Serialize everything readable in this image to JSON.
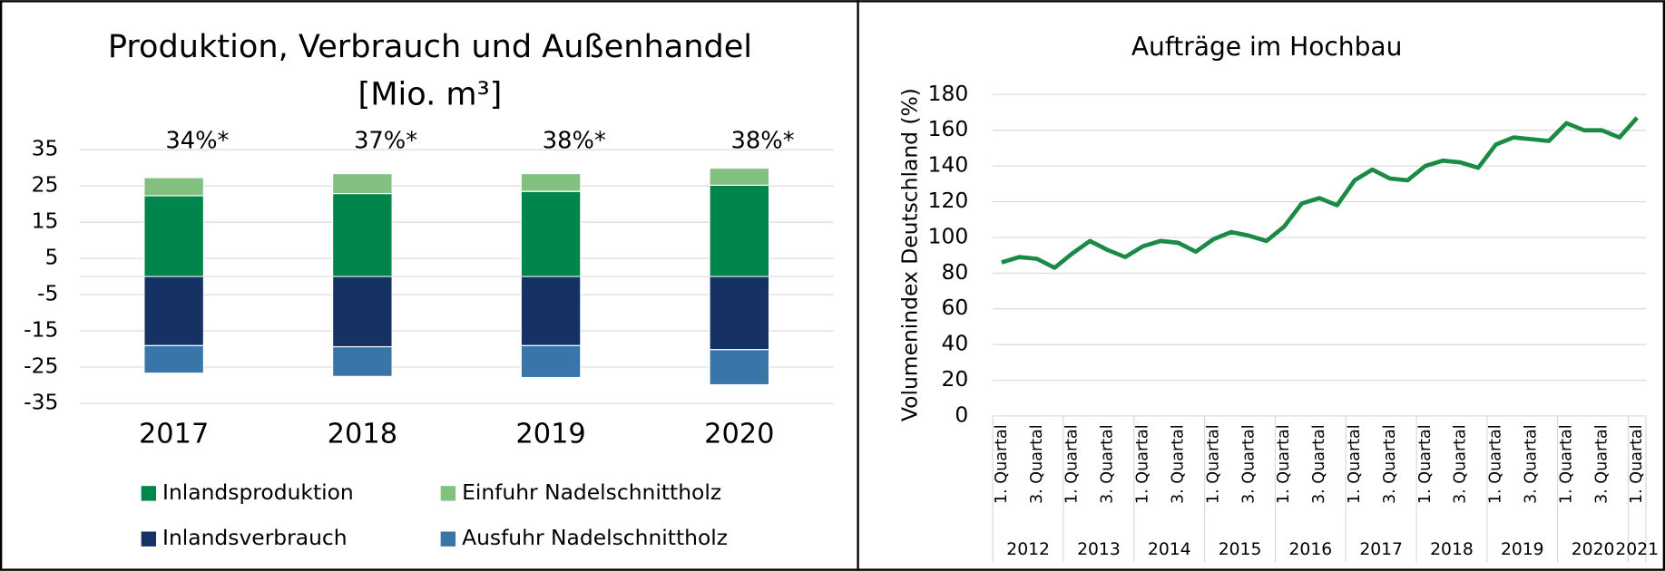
{
  "chart_data": [
    {
      "type": "bar",
      "title": [
        "Produktion, Verbrauch und Außenhandel",
        "[Mio. m³]"
      ],
      "categories": [
        "2017",
        "2018",
        "2019",
        "2020"
      ],
      "annotations": [
        "34%*",
        "37%*",
        "38%*",
        "38%*"
      ],
      "series": [
        {
          "name": "Inlandsproduktion",
          "color": "#00854a",
          "values": [
            22.3,
            22.9,
            23.5,
            25.2
          ]
        },
        {
          "name": "Einfuhr Nadelschnittholz",
          "color": "#82c07f",
          "values": [
            5.0,
            5.5,
            4.9,
            4.7
          ]
        },
        {
          "name": "Inlandsverbrauch",
          "color": "#163264",
          "values": [
            -19.1,
            -19.4,
            -19.1,
            -20.2
          ]
        },
        {
          "name": "Ausfuhr Nadelschnittholz",
          "color": "#3a75aa",
          "values": [
            -7.6,
            -8.2,
            -8.8,
            -9.7
          ]
        }
      ],
      "ylim": [
        -35,
        35
      ],
      "yticks": [
        35,
        25,
        15,
        5,
        -5,
        -15,
        -25,
        -35
      ],
      "grid": true
    },
    {
      "type": "line",
      "title": "Aufträge im Hochbau",
      "ylabel": "Volumenindex Deutschland (%)",
      "categories": [
        "1. Quartal",
        null,
        "3. Quartal",
        null,
        "1. Quartal",
        null,
        "3. Quartal",
        null,
        "1. Quartal",
        null,
        "3. Quartal",
        null,
        "1. Quartal",
        null,
        "3. Quartal",
        null,
        "1. Quartal",
        null,
        "3. Quartal",
        null,
        "1. Quartal",
        null,
        "3. Quartal",
        null,
        "1. Quartal",
        null,
        "3. Quartal",
        null,
        "1. Quartal",
        null,
        "3. Quartal",
        null,
        "1. Quartal",
        null,
        "3. Quartal",
        null,
        "1. Quartal"
      ],
      "groups": [
        {
          "label": "2012",
          "count": 4
        },
        {
          "label": "2013",
          "count": 4
        },
        {
          "label": "2014",
          "count": 4
        },
        {
          "label": "2015",
          "count": 4
        },
        {
          "label": "2016",
          "count": 4
        },
        {
          "label": "2017",
          "count": 4
        },
        {
          "label": "2018",
          "count": 4
        },
        {
          "label": "2019",
          "count": 4
        },
        {
          "label": "2020",
          "count": 4
        },
        {
          "label": "2021",
          "count": 1
        }
      ],
      "series": [
        {
          "name": "Aufträge",
          "color": "#1a8a45",
          "values": [
            86,
            89,
            88,
            83,
            91,
            98,
            93,
            89,
            95,
            98,
            97,
            92,
            99,
            103,
            101,
            98,
            106,
            119,
            122,
            118,
            132,
            138,
            133,
            132,
            140,
            143,
            142,
            139,
            152,
            156,
            155,
            154,
            164,
            160,
            160,
            156,
            167
          ]
        }
      ],
      "ylim": [
        0,
        180
      ],
      "yticks": [
        0,
        20,
        40,
        60,
        80,
        100,
        120,
        140,
        160,
        180
      ],
      "grid": true
    }
  ]
}
